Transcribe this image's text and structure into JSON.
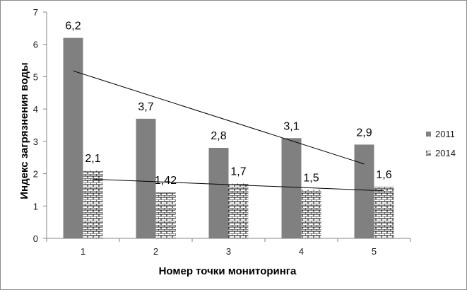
{
  "chart_data": {
    "type": "bar",
    "categories": [
      "1",
      "2",
      "3",
      "4",
      "5"
    ],
    "series": [
      {
        "name": "2011",
        "values": [
          6.2,
          3.7,
          2.8,
          3.1,
          2.9
        ],
        "labels": [
          "6,2",
          "3,7",
          "2,8",
          "3,1",
          "2,9"
        ],
        "color": "#808080",
        "pattern": "solid",
        "trendline": [
          5.18,
          2.3
        ]
      },
      {
        "name": "2014",
        "values": [
          2.1,
          1.42,
          1.7,
          1.5,
          1.6
        ],
        "labels": [
          "2,1",
          "1,42",
          "1,7",
          "1,5",
          "1,6"
        ],
        "color": "#ffffff",
        "pattern": "bricks",
        "trendline": [
          1.83,
          1.47
        ]
      }
    ],
    "xlabel": "Номер точки мониторинга",
    "ylabel": "Индекс загрязнения воды",
    "ylim": [
      0,
      7
    ],
    "yticks": [
      "0",
      "1",
      "2",
      "3",
      "4",
      "5",
      "6",
      "7"
    ],
    "grid": false,
    "legend_position": "right"
  }
}
